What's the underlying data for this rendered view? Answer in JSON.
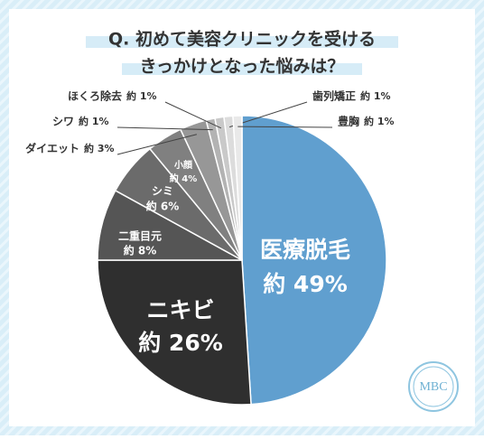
{
  "chart_data": {
    "type": "pie",
    "title": [
      "Q. 初めて美容クリニックを受ける",
      "きっかけとなった悩みは？"
    ],
    "categories": [
      "医療脱毛",
      "ニキビ",
      "二重目元",
      "シミ",
      "小顔",
      "ダイエット",
      "シワ",
      "ほくろ除去",
      "歯列矯正",
      "豊胸"
    ],
    "values": [
      49,
      26,
      8,
      6,
      4,
      3,
      1,
      1,
      1,
      1
    ],
    "value_labels": [
      "約 49%",
      "約 26%",
      "約 8%",
      "約 6%",
      "約 4%",
      "約 3%",
      "約 1%",
      "約 1%",
      "約 1%",
      "約 1%"
    ],
    "colors": [
      "#609fcf",
      "#2f2f2f",
      "#555555",
      "#6b6b6b",
      "#808080",
      "#979797",
      "#b3b3b3",
      "#c9c9c9",
      "#dcdcdc",
      "#e9e9e9"
    ]
  },
  "logo": "MBC"
}
